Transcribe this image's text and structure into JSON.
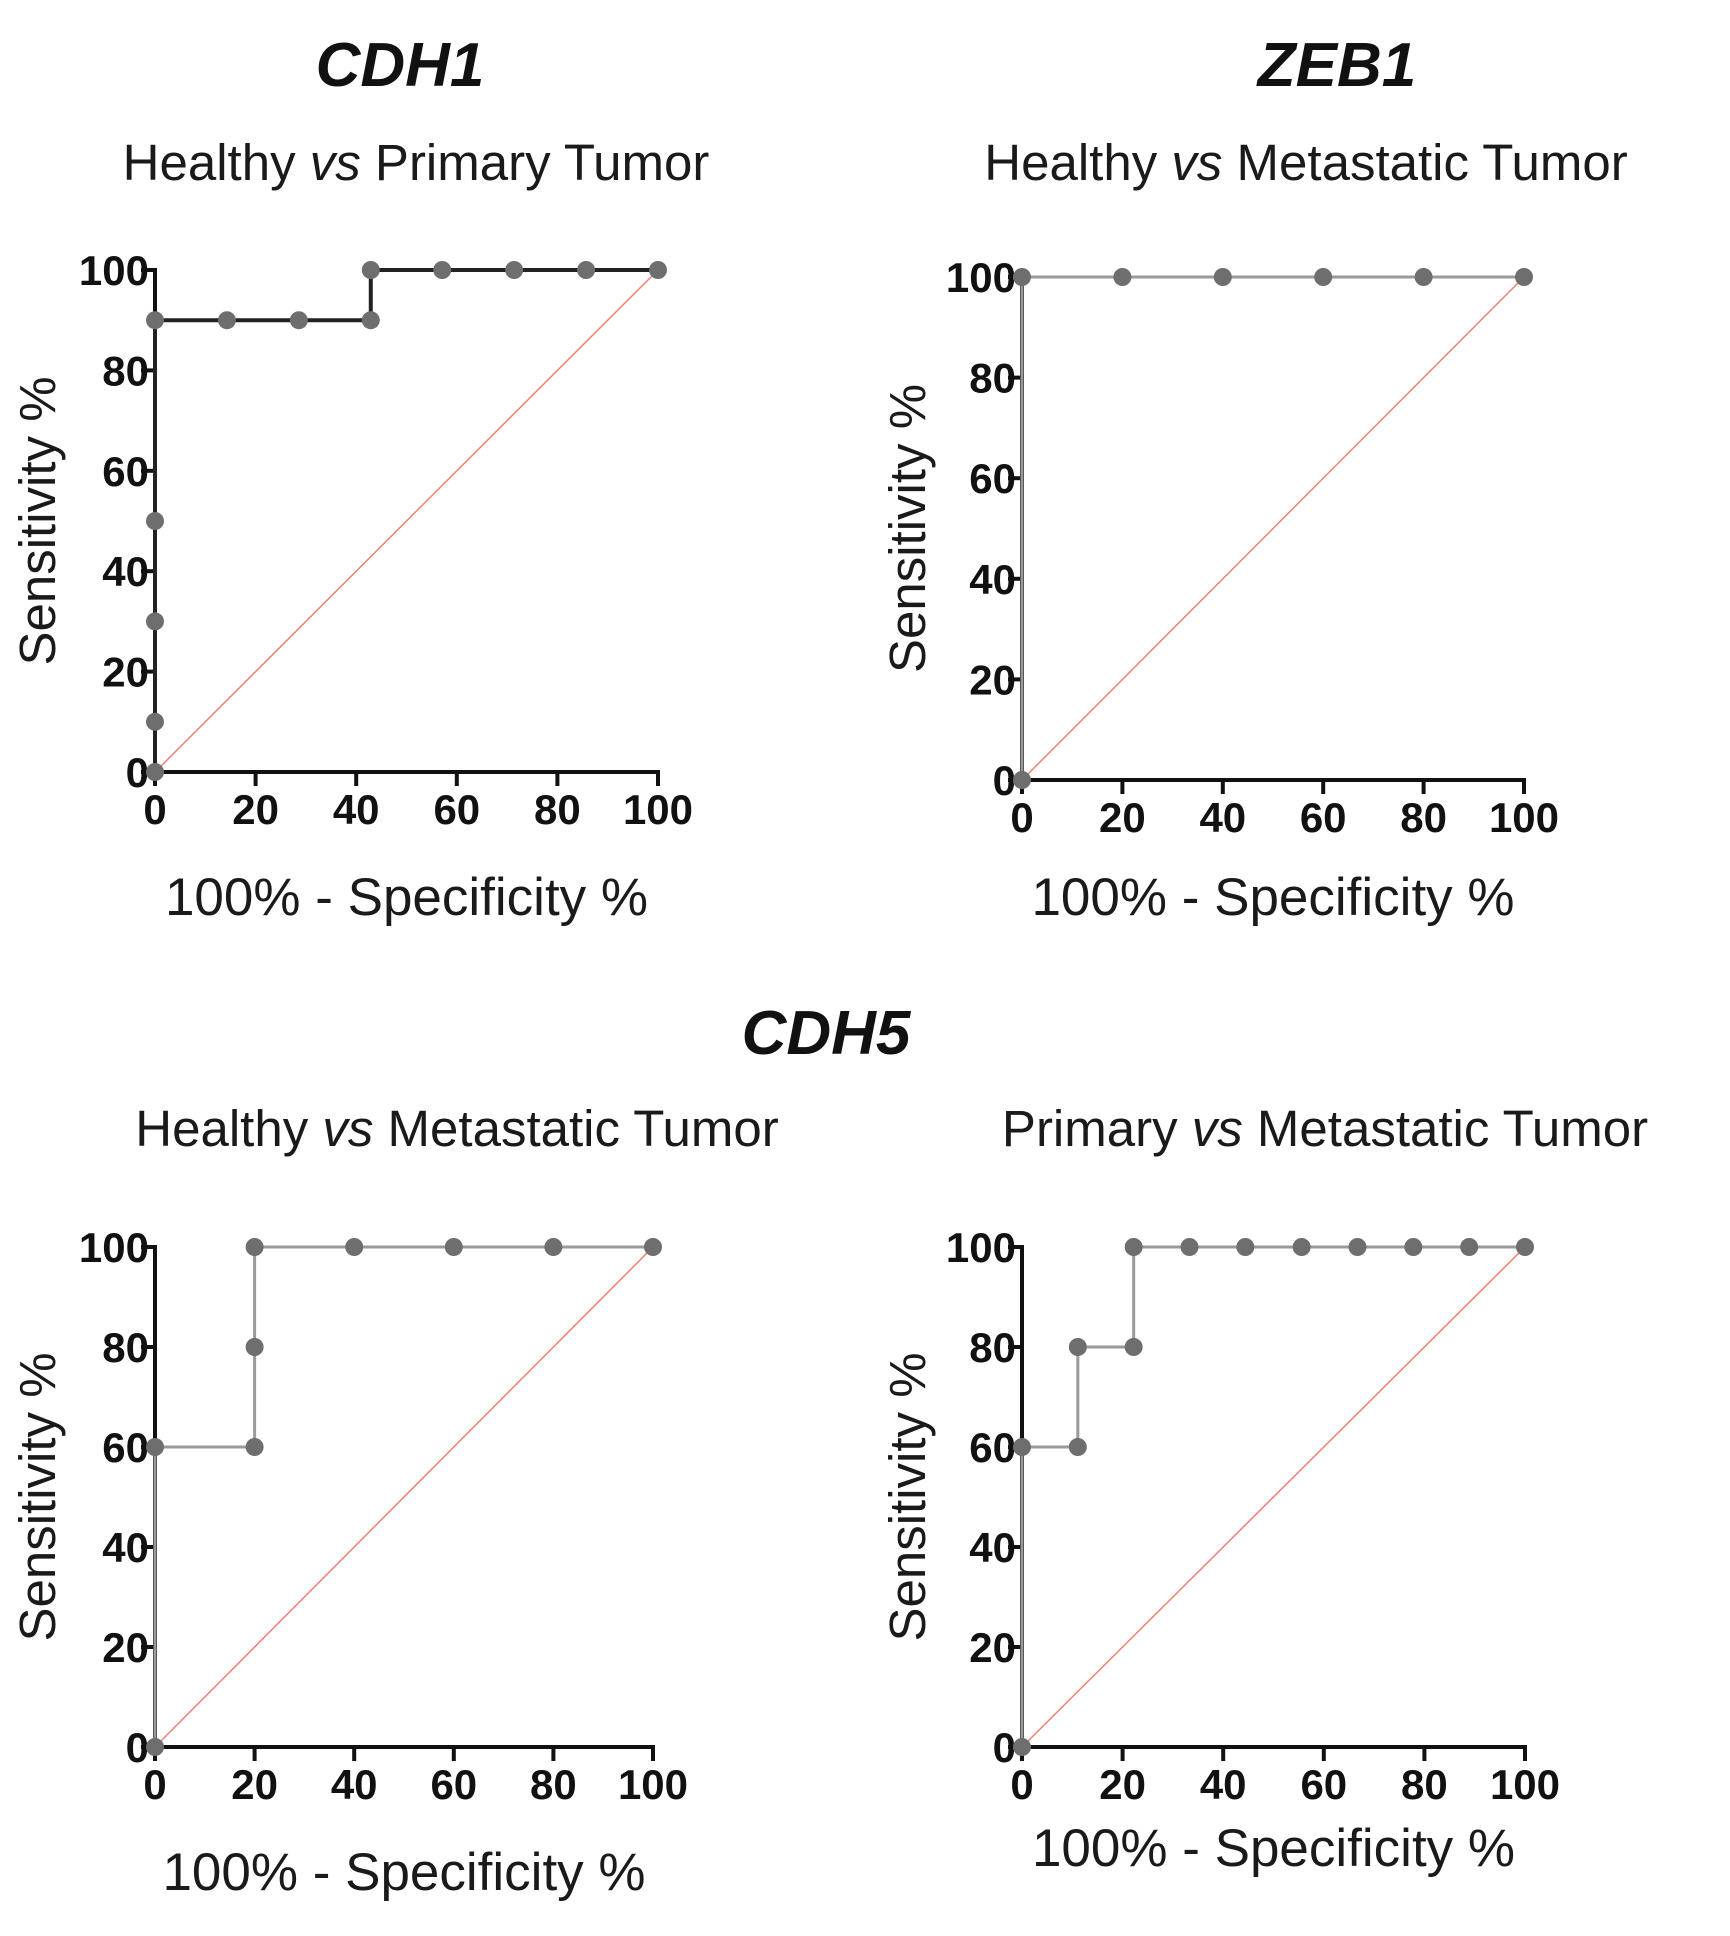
{
  "genes": {
    "top_left": "CDH1",
    "top_right": "ZEB1",
    "bottom": "CDH5"
  },
  "colors": {
    "curve_dark": "#222222",
    "curve_light": "#9a9a9a",
    "points": "#6e6e6e",
    "reference": "#f08070"
  },
  "chart_data": [
    {
      "type": "line",
      "gene": "CDH1",
      "subtitle_a": "Healthy ",
      "subtitle_vs": "vs",
      "subtitle_b": " Primary Tumor",
      "xlabel": "100% - Specificity %",
      "ylabel": "Sensitivity %",
      "xlim": [
        0,
        100
      ],
      "ylim": [
        0,
        100
      ],
      "xticks": [
        "0",
        "20",
        "40",
        "60",
        "80",
        "100"
      ],
      "yticks": [
        "0",
        "20",
        "40",
        "60",
        "80",
        "100"
      ],
      "curve_style": "dark",
      "points": [
        [
          0,
          0
        ],
        [
          0,
          10
        ],
        [
          0,
          30
        ],
        [
          0,
          50
        ],
        [
          0,
          90
        ],
        [
          14.3,
          90
        ],
        [
          28.6,
          90
        ],
        [
          42.9,
          90
        ],
        [
          42.9,
          100
        ],
        [
          57.1,
          100
        ],
        [
          71.4,
          100
        ],
        [
          85.7,
          100
        ],
        [
          100,
          100
        ]
      ]
    },
    {
      "type": "line",
      "gene": "ZEB1",
      "subtitle_a": "Healthy ",
      "subtitle_vs": "vs",
      "subtitle_b": " Metastatic Tumor",
      "xlabel": "100% - Specificity %",
      "ylabel": "Sensitivity %",
      "xlim": [
        0,
        100
      ],
      "ylim": [
        0,
        100
      ],
      "xticks": [
        "0",
        "20",
        "40",
        "60",
        "80",
        "100"
      ],
      "yticks": [
        "0",
        "20",
        "40",
        "60",
        "80",
        "100"
      ],
      "curve_style": "light",
      "points": [
        [
          0,
          0
        ],
        [
          0,
          100
        ],
        [
          20,
          100
        ],
        [
          40,
          100
        ],
        [
          60,
          100
        ],
        [
          80,
          100
        ],
        [
          100,
          100
        ]
      ]
    },
    {
      "type": "line",
      "gene": "CDH5",
      "subtitle_a": "Healthy ",
      "subtitle_vs": "vs",
      "subtitle_b": " Metastatic Tumor",
      "xlabel": "100% - Specificity %",
      "ylabel": "Sensitivity %",
      "xlim": [
        0,
        100
      ],
      "ylim": [
        0,
        100
      ],
      "xticks": [
        "0",
        "20",
        "40",
        "60",
        "80",
        "100"
      ],
      "yticks": [
        "0",
        "20",
        "40",
        "60",
        "80",
        "100"
      ],
      "curve_style": "light",
      "points": [
        [
          0,
          0
        ],
        [
          0,
          60
        ],
        [
          20,
          60
        ],
        [
          20,
          80
        ],
        [
          20,
          100
        ],
        [
          40,
          100
        ],
        [
          60,
          100
        ],
        [
          80,
          100
        ],
        [
          100,
          100
        ]
      ]
    },
    {
      "type": "line",
      "gene": "CDH5",
      "subtitle_a": "Primary ",
      "subtitle_vs": "vs",
      "subtitle_b": " Metastatic Tumor",
      "xlabel": "100% - Specificity %",
      "ylabel": "Sensitivity %",
      "xlim": [
        0,
        100
      ],
      "ylim": [
        0,
        100
      ],
      "xticks": [
        "0",
        "20",
        "40",
        "60",
        "80",
        "100"
      ],
      "yticks": [
        "0",
        "20",
        "40",
        "60",
        "80",
        "100"
      ],
      "curve_style": "light",
      "points": [
        [
          0,
          0
        ],
        [
          0,
          60
        ],
        [
          11.1,
          60
        ],
        [
          11.1,
          80
        ],
        [
          22.2,
          80
        ],
        [
          22.2,
          100
        ],
        [
          33.3,
          100
        ],
        [
          44.4,
          100
        ],
        [
          55.6,
          100
        ],
        [
          66.7,
          100
        ],
        [
          77.8,
          100
        ],
        [
          88.9,
          100
        ],
        [
          100,
          100
        ]
      ]
    }
  ]
}
